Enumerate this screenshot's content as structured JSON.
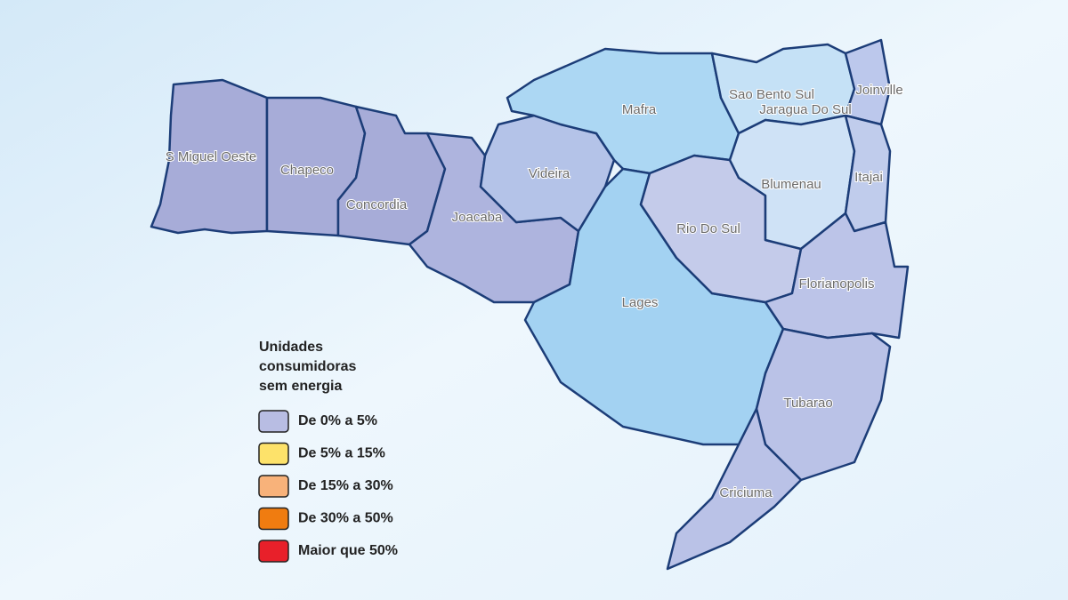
{
  "map": {
    "legend": {
      "title": [
        "Unidades",
        "consumidoras",
        "sem energia"
      ],
      "items": [
        {
          "label": "De 0% a 5%",
          "color": "#b8bde3"
        },
        {
          "label": "De 5% a 15%",
          "color": "#fde26a"
        },
        {
          "label": "De 15% a 30%",
          "color": "#f8b27a"
        },
        {
          "label": "De 30% a 50%",
          "color": "#f07c10"
        },
        {
          "label": "Maior que 50%",
          "color": "#e8202a"
        }
      ]
    },
    "regions": [
      {
        "name": "S Miguel Oeste"
      },
      {
        "name": "Chapeco"
      },
      {
        "name": "Concordia"
      },
      {
        "name": "Joacaba"
      },
      {
        "name": "Videira"
      },
      {
        "name": "Mafra"
      },
      {
        "name": "Lages"
      },
      {
        "name": "Rio Do Sul"
      },
      {
        "name": "Sao Bento Sul"
      },
      {
        "name": "Jaragua Do Sul"
      },
      {
        "name": "Joinville"
      },
      {
        "name": "Blumenau"
      },
      {
        "name": "Itajai"
      },
      {
        "name": "Florianopolis"
      },
      {
        "name": "Tubarao"
      },
      {
        "name": "Criciuma"
      }
    ]
  }
}
